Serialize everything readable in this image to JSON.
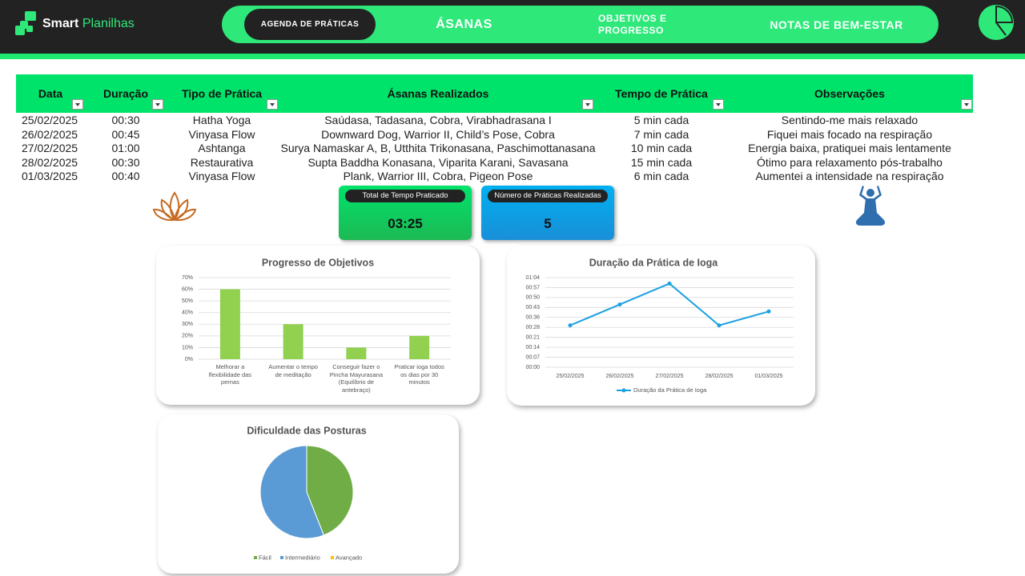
{
  "header": {
    "brand": "Smart",
    "brand_suffix": "Planilhas",
    "nav": [
      "AGENDA DE PRÁTICAS",
      "ÁSANAS",
      "OBJETIVOS E PROGRESSO",
      "NOTAS DE BEM-ESTAR"
    ]
  },
  "table": {
    "columns": [
      "Data",
      "Duração",
      "Tipo de Prática",
      "Ásanas Realizados",
      "Tempo de Prática",
      "Observações"
    ],
    "rows": [
      [
        "25/02/2025",
        "00:30",
        "Hatha Yoga",
        "Saúdasa, Tadasana, Cobra, Virabhadrasana I",
        "5 min cada",
        "Sentindo-me mais relaxado"
      ],
      [
        "26/02/2025",
        "00:45",
        "Vinyasa Flow",
        "Downward Dog, Warrior II, Child’s Pose, Cobra",
        "7 min cada",
        "Fiquei mais focado na respiração"
      ],
      [
        "27/02/2025",
        "01:00",
        "Ashtanga",
        "Surya Namaskar A, B, Utthita Trikonasana, Paschimottanasana",
        "10 min cada",
        "Energia baixa, pratiquei mais lentamente"
      ],
      [
        "28/02/2025",
        "00:30",
        "Restaurativa",
        "Supta Baddha Konasana, Viparita Karani, Savasana",
        "15 min cada",
        "Ótimo para relaxamento pós-trabalho"
      ],
      [
        "01/03/2025",
        "00:40",
        "Vinyasa Flow",
        "Plank, Warrior III, Cobra, Pigeon Pose",
        "6 min cada",
        "Aumentei a intensidade na respiração"
      ]
    ]
  },
  "kpis": [
    {
      "label": "Total de Tempo Praticado",
      "value": "03:25"
    },
    {
      "label": "Número de Práticas Realizadas",
      "value": 5
    }
  ],
  "chart_data": [
    {
      "type": "bar",
      "title": "Progresso de Objetivos",
      "categories": [
        "Melhorar a flexibilidade das pernas",
        "Aumentar o tempo de meditação",
        "Conseguir fazer o Pincha Mayurasana (Equilíbrio de antebraço)",
        "Praticar ioga todos os dias por 30 minutos"
      ],
      "values": [
        60,
        30,
        10,
        20
      ],
      "color": "#92d050",
      "ylim": [
        0,
        70
      ],
      "yticks": [
        {
          "value": 0,
          "label": "0%"
        },
        {
          "value": 10,
          "label": "10%"
        },
        {
          "value": 20,
          "label": "20%"
        },
        {
          "value": 30,
          "label": "30%"
        },
        {
          "value": 40,
          "label": "40%"
        },
        {
          "value": 50,
          "label": "50%"
        },
        {
          "value": 60,
          "label": "60%"
        },
        {
          "value": 70,
          "label": "70%"
        }
      ],
      "grid": true
    },
    {
      "type": "line",
      "title": "Duração da Prática de Ioga",
      "categories": [
        "25/02/2025",
        "26/02/2025",
        "27/02/2025",
        "28/02/2025",
        "01/03/2025"
      ],
      "series": [
        {
          "name": "Duração da Prática de Ioga",
          "color": "#1ba1e2",
          "values": [
            30,
            45,
            60,
            30,
            40
          ]
        }
      ],
      "ylim": [
        0,
        64.285714
      ],
      "yticks": [
        {
          "value": 0,
          "label": "00:00"
        },
        {
          "value": 7.142857,
          "label": "00:07"
        },
        {
          "value": 14.285714,
          "label": "00:14"
        },
        {
          "value": 21.428571,
          "label": "00:21"
        },
        {
          "value": 28.571429,
          "label": "00:28"
        },
        {
          "value": 35.714286,
          "label": "00:36"
        },
        {
          "value": 42.857143,
          "label": "00:43"
        },
        {
          "value": 50,
          "label": "00:50"
        },
        {
          "value": 57.142857,
          "label": "00:57"
        },
        {
          "value": 64.285714,
          "label": "01:04"
        }
      ],
      "grid": true,
      "legend": "bottom"
    },
    {
      "type": "pie",
      "title": "Dificuldade das Posturas",
      "categories": [
        "Fácil",
        "Intermediário",
        "Avançado"
      ],
      "values": [
        44,
        56,
        0
      ],
      "colors": [
        "#70ad47",
        "#5b9bd5",
        "#ffc000"
      ],
      "legend": "bottom"
    }
  ]
}
